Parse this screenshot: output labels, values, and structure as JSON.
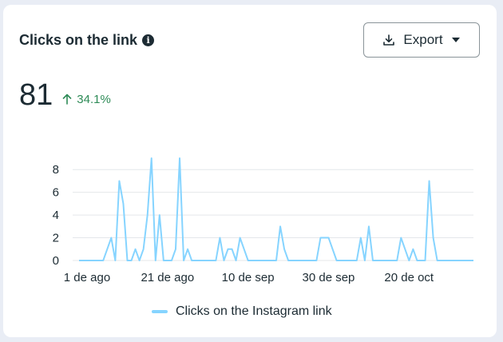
{
  "card": {
    "title": "Clicks on the link",
    "info_icon": "info-icon",
    "export_label": "Export"
  },
  "metric": {
    "value": "81",
    "change": "34.1%",
    "change_color": "#2e8b57"
  },
  "chart_data": {
    "type": "line",
    "title": "",
    "xlabel": "",
    "ylabel": "",
    "ylim": [
      0,
      9
    ],
    "yticks": [
      0,
      2,
      4,
      6,
      8
    ],
    "xtick_labels": [
      "1 de ago",
      "21 de ago",
      "10 de sep",
      "30 de sep",
      "20 de oct"
    ],
    "xtick_index": [
      0,
      20,
      40,
      60,
      80
    ],
    "grid": true,
    "legend": "bottom",
    "series": [
      {
        "name": "Clicks on the Instagram link",
        "color": "#86d4ff",
        "values": [
          0,
          0,
          0,
          0,
          0,
          0,
          0,
          1,
          2,
          0,
          7,
          5,
          0,
          0,
          1,
          0,
          1,
          4,
          9,
          0,
          4,
          0,
          0,
          0,
          1,
          9,
          0,
          1,
          0,
          0,
          0,
          0,
          0,
          0,
          0,
          2,
          0,
          1,
          1,
          0,
          2,
          1,
          0,
          0,
          0,
          0,
          0,
          0,
          0,
          0,
          3,
          1,
          0,
          0,
          0,
          0,
          0,
          0,
          0,
          0,
          2,
          2,
          2,
          1,
          0,
          0,
          0,
          0,
          0,
          0,
          2,
          0,
          3,
          0,
          0,
          0,
          0,
          0,
          0,
          0,
          2,
          1,
          0,
          1,
          0,
          0,
          0,
          7,
          2,
          0,
          0,
          0,
          0,
          0,
          0,
          0,
          0,
          0,
          0
        ]
      }
    ]
  }
}
